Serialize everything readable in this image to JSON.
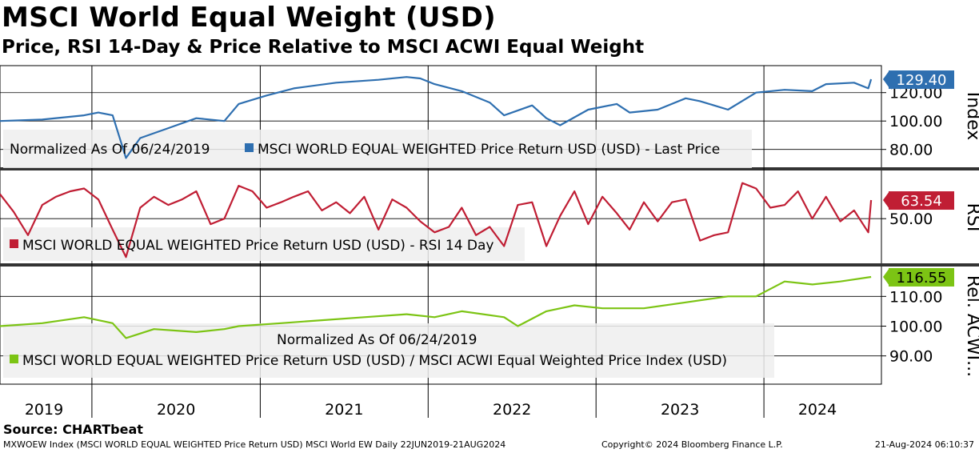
{
  "header": {
    "title": "MSCI World Equal Weight (USD)",
    "subtitle": "Price, RSI 14-Day & Price Relative to MSCI ACWI Equal Weight"
  },
  "footer": {
    "source": "Source: CHARTbeat",
    "left": "MXWOEW Index (MSCI WORLD EQUAL WEIGHTED Price Return USD) MSCI World EW  Daily 22JUN2019-21AUG2024",
    "center": "Copyright© 2024 Bloomberg Finance L.P.",
    "right": "21-Aug-2024 06:10:37"
  },
  "colors": {
    "price": "#2e6fb0",
    "rsi": "#c01e34",
    "relative": "#7cc414",
    "price_label_bg": "#2e6fb0",
    "rsi_label_bg": "#c01e34",
    "relative_label_bg": "#7cc414"
  },
  "chart_data": [
    {
      "type": "line",
      "panel": "price",
      "axis_title": "Index",
      "ylim": [
        68,
        139
      ],
      "yticks": [
        80,
        100,
        120
      ],
      "ytick_labels": [
        "80.00",
        "100.00",
        "120.00"
      ],
      "last_value_label": "129.40",
      "legend_note": "Normalized As Of 06/24/2019",
      "series": [
        {
          "name": "MSCI WORLD EQUAL WEIGHTED Price Return USD (USD) - Last Price",
          "x": [
            "2019-06",
            "2019-09",
            "2019-12",
            "2020-01",
            "2020-02",
            "2020-03",
            "2020-04",
            "2020-06",
            "2020-08",
            "2020-10",
            "2020-11",
            "2021-01",
            "2021-03",
            "2021-06",
            "2021-09",
            "2021-11",
            "2021-12",
            "2022-01",
            "2022-03",
            "2022-05",
            "2022-06",
            "2022-08",
            "2022-09",
            "2022-10",
            "2022-12",
            "2023-02",
            "2023-03",
            "2023-05",
            "2023-07",
            "2023-08",
            "2023-10",
            "2023-12",
            "2024-02",
            "2024-04",
            "2024-05",
            "2024-07",
            "2024-08",
            "2024-08-21"
          ],
          "values": [
            100,
            101,
            104,
            106,
            104,
            74,
            88,
            95,
            102,
            100,
            112,
            118,
            123,
            127,
            129,
            131,
            130,
            126,
            121,
            113,
            104,
            111,
            102,
            97,
            108,
            112,
            106,
            108,
            116,
            114,
            108,
            120,
            122,
            121,
            126,
            127,
            123,
            129.4
          ]
        }
      ],
      "xlim": [
        "2019-01-01",
        "2024-12-31"
      ]
    },
    {
      "type": "line",
      "panel": "rsi",
      "axis_title": "RSI",
      "ylim": [
        18,
        84
      ],
      "yticks": [
        50
      ],
      "ytick_labels": [
        "50.00"
      ],
      "last_value_label": "63.54",
      "series": [
        {
          "name": "MSCI WORLD EQUAL WEIGHTED Price Return USD (USD) - RSI 14 Day",
          "x": [
            "2019-06",
            "2019-07",
            "2019-08",
            "2019-09",
            "2019-10",
            "2019-11",
            "2019-12",
            "2020-01",
            "2020-02",
            "2020-03",
            "2020-04",
            "2020-05",
            "2020-06",
            "2020-07",
            "2020-08",
            "2020-09",
            "2020-10",
            "2020-11",
            "2020-12",
            "2021-01",
            "2021-02",
            "2021-03",
            "2021-04",
            "2021-05",
            "2021-06",
            "2021-07",
            "2021-08",
            "2021-09",
            "2021-10",
            "2021-11",
            "2021-12",
            "2022-01",
            "2022-02",
            "2022-03",
            "2022-04",
            "2022-05",
            "2022-06",
            "2022-07",
            "2022-08",
            "2022-09",
            "2022-10",
            "2022-11",
            "2022-12",
            "2023-01",
            "2023-02",
            "2023-03",
            "2023-04",
            "2023-05",
            "2023-06",
            "2023-07",
            "2023-08",
            "2023-09",
            "2023-10",
            "2023-11",
            "2023-12",
            "2024-01",
            "2024-02",
            "2024-03",
            "2024-04",
            "2024-05",
            "2024-06",
            "2024-07",
            "2024-08",
            "2024-08-21"
          ],
          "values": [
            68,
            55,
            38,
            60,
            66,
            70,
            72,
            64,
            42,
            22,
            58,
            66,
            60,
            64,
            70,
            46,
            50,
            74,
            70,
            58,
            62,
            66,
            70,
            56,
            62,
            54,
            66,
            42,
            64,
            58,
            48,
            40,
            44,
            58,
            38,
            44,
            30,
            60,
            62,
            30,
            52,
            70,
            46,
            66,
            54,
            42,
            62,
            48,
            62,
            64,
            34,
            38,
            40,
            76,
            72,
            58,
            60,
            70,
            50,
            66,
            48,
            56,
            40,
            63.54
          ]
        }
      ],
      "xlim": [
        "2019-01-01",
        "2024-12-31"
      ]
    },
    {
      "type": "line",
      "panel": "relative",
      "axis_title": "Rel. ACWI...",
      "ylim": [
        80.5,
        119.5
      ],
      "yticks": [
        90,
        100,
        110
      ],
      "ytick_labels": [
        "90.00",
        "100.00",
        "110.00"
      ],
      "last_value_label": "116.55",
      "legend_note": "Normalized As Of 06/24/2019",
      "series": [
        {
          "name": "MSCI WORLD EQUAL WEIGHTED Price Return USD (USD) / MSCI ACWI Equal Weighted Price Index (USD)",
          "x": [
            "2019-06",
            "2019-09",
            "2019-12",
            "2020-02",
            "2020-03",
            "2020-05",
            "2020-08",
            "2020-10",
            "2020-11",
            "2021-02",
            "2021-05",
            "2021-08",
            "2021-11",
            "2022-01",
            "2022-03",
            "2022-06",
            "2022-07",
            "2022-09",
            "2022-11",
            "2023-01",
            "2023-04",
            "2023-07",
            "2023-10",
            "2023-12",
            "2024-02",
            "2024-04",
            "2024-06",
            "2024-08-21"
          ],
          "values": [
            100,
            101,
            103,
            101,
            96,
            99,
            98,
            99,
            100,
            101,
            102,
            103,
            104,
            103,
            105,
            103,
            100,
            105,
            107,
            106,
            106,
            108,
            110,
            110,
            115,
            114,
            115,
            116.55
          ]
        }
      ],
      "xlim": [
        "2019-01-01",
        "2024-12-31"
      ]
    }
  ],
  "x_axis": {
    "years": [
      "2019",
      "2020",
      "2021",
      "2022",
      "2023",
      "2024"
    ]
  }
}
